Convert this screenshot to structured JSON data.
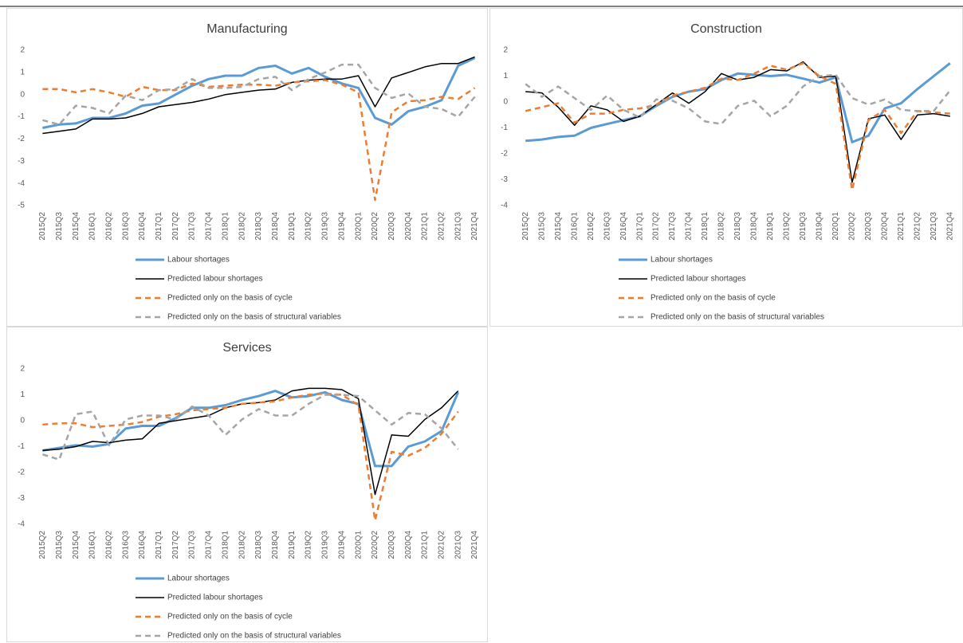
{
  "chart_data": [
    {
      "type": "line",
      "title": "Manufacturing",
      "categories": [
        "2015Q2",
        "2015Q3",
        "2015Q4",
        "2016Q1",
        "2016Q2",
        "2016Q3",
        "2016Q4",
        "2017Q1",
        "2017Q2",
        "2017Q3",
        "2017Q4",
        "2018Q1",
        "2018Q2",
        "2018Q3",
        "2018Q4",
        "2019Q1",
        "2019Q2",
        "2019Q3",
        "2019Q4",
        "2020Q1",
        "2020Q2",
        "2020Q3",
        "2020Q4",
        "2021Q1",
        "2021Q2",
        "2021Q3",
        "2021Q4"
      ],
      "ylim": [
        -5,
        2
      ],
      "yticks": [
        -5,
        -4,
        -3,
        -2,
        -1,
        0,
        1,
        2
      ],
      "series": [
        {
          "name": "Labour shortages",
          "color": "#5b9bd5",
          "dashed": false,
          "values": [
            -1.5,
            -1.35,
            -1.3,
            -1.05,
            -1.05,
            -0.85,
            -0.5,
            -0.4,
            0,
            0.4,
            0.7,
            0.85,
            0.85,
            1.2,
            1.3,
            0.95,
            1.2,
            0.8,
            0.5,
            0.3,
            -1.05,
            -1.35,
            -0.75,
            -0.55,
            -0.25,
            1.3,
            1.65
          ]
        },
        {
          "name": "Predicted labour shortages",
          "color": "#000000",
          "dashed": false,
          "values": [
            -1.75,
            -1.65,
            -1.55,
            -1.1,
            -1.1,
            -1.05,
            -0.85,
            -0.55,
            -0.45,
            -0.35,
            -0.2,
            0,
            0.1,
            0.2,
            0.25,
            0.55,
            0.65,
            0.7,
            0.7,
            0.85,
            -0.55,
            0.75,
            1.0,
            1.25,
            1.4,
            1.4,
            1.7
          ]
        },
        {
          "name": "Predicted only on the basis of cycle",
          "color": "#ed7d31",
          "dashed": true,
          "values": [
            0.25,
            0.25,
            0.1,
            0.25,
            0.1,
            -0.1,
            0.35,
            0.2,
            0.2,
            0.5,
            0.35,
            0.4,
            0.45,
            0.45,
            0.4,
            0.55,
            0.6,
            0.65,
            0.45,
            0.1,
            -4.75,
            -0.8,
            -0.3,
            -0.25,
            -0.1,
            -0.2,
            0.3
          ]
        },
        {
          "name": "Predicted only on the basis of structural variables",
          "color": "#a5a5a5",
          "dashed": true,
          "values": [
            -1.15,
            -1.35,
            -0.5,
            -0.6,
            -0.85,
            -0.05,
            -0.25,
            0.2,
            0.25,
            0.7,
            0.3,
            0.3,
            0.35,
            0.7,
            0.8,
            0.2,
            0.7,
            1.0,
            1.35,
            1.35,
            0.3,
            -0.15,
            0.05,
            -0.55,
            -0.65,
            -1.0,
            -0.1
          ]
        }
      ]
    },
    {
      "type": "line",
      "title": "Construction",
      "categories": [
        "2015Q2",
        "2015Q3",
        "2015Q4",
        "2016Q1",
        "2016Q2",
        "2016Q3",
        "2016Q4",
        "2017Q1",
        "2017Q2",
        "2017Q3",
        "2017Q4",
        "2018Q1",
        "2018Q2",
        "2018Q3",
        "2018Q4",
        "2019Q1",
        "2019Q2",
        "2019Q3",
        "2019Q4",
        "2020Q1",
        "2020Q2",
        "2020Q3",
        "2020Q4",
        "2021Q1",
        "2021Q2",
        "2021Q3",
        "2021Q4"
      ],
      "ylim": [
        -4,
        2
      ],
      "yticks": [
        -4,
        -3,
        -2,
        -1,
        0,
        1,
        2
      ],
      "series": [
        {
          "name": "Labour shortages",
          "color": "#5b9bd5",
          "dashed": false,
          "values": [
            -1.5,
            -1.45,
            -1.35,
            -1.3,
            -1.0,
            -0.85,
            -0.7,
            -0.55,
            -0.15,
            0.2,
            0.4,
            0.5,
            0.85,
            1.1,
            1.05,
            1.0,
            1.05,
            0.9,
            0.75,
            0.95,
            -1.55,
            -1.3,
            -0.25,
            -0.05,
            0.5,
            1.0,
            1.5
          ]
        },
        {
          "name": "Predicted labour shortages",
          "color": "#000000",
          "dashed": false,
          "values": [
            0.4,
            0.35,
            -0.2,
            -0.9,
            -0.15,
            -0.3,
            -0.75,
            -0.55,
            -0.1,
            0.35,
            -0.05,
            0.4,
            1.1,
            0.85,
            0.95,
            1.25,
            1.2,
            1.55,
            0.95,
            1.0,
            -3.1,
            -0.65,
            -0.5,
            -1.45,
            -0.5,
            -0.45,
            -0.55
          ]
        },
        {
          "name": "Predicted only on the basis of cycle",
          "color": "#ed7d31",
          "dashed": true,
          "values": [
            -0.35,
            -0.2,
            -0.05,
            -0.8,
            -0.45,
            -0.45,
            -0.3,
            -0.25,
            -0.1,
            0.25,
            0.4,
            0.55,
            0.9,
            0.85,
            1.1,
            1.4,
            1.25,
            1.5,
            1.0,
            0.7,
            -3.4,
            -0.7,
            -0.3,
            -1.2,
            -0.35,
            -0.4,
            -0.45
          ]
        },
        {
          "name": "Predicted only on the basis of structural variables",
          "color": "#a5a5a5",
          "dashed": true,
          "values": [
            0.7,
            0.2,
            0.6,
            0.15,
            -0.3,
            0.25,
            -0.3,
            -0.6,
            0.1,
            0.05,
            -0.25,
            -0.75,
            -0.85,
            -0.15,
            0.05,
            -0.55,
            -0.15,
            0.6,
            1.0,
            1.05,
            0.15,
            -0.1,
            0.1,
            -0.3,
            -0.35,
            -0.35,
            0.45
          ]
        }
      ]
    },
    {
      "type": "line",
      "title": "Services",
      "categories": [
        "2015Q2",
        "2015Q3",
        "2015Q4",
        "2016Q1",
        "2016Q2",
        "2016Q3",
        "2016Q4",
        "2017Q1",
        "2017Q2",
        "2017Q3",
        "2017Q4",
        "2018Q1",
        "2018Q2",
        "2018Q3",
        "2018Q4",
        "2019Q1",
        "2019Q2",
        "2019Q3",
        "2019Q4",
        "2020Q1",
        "2020Q2",
        "2020Q3",
        "2020Q4",
        "2021Q1",
        "2021Q2",
        "2021Q3",
        "2021Q4"
      ],
      "ylim": [
        -4,
        2
      ],
      "yticks": [
        -4,
        -3,
        -2,
        -1,
        0,
        1,
        2
      ],
      "series": [
        {
          "name": "Labour shortages",
          "color": "#5b9bd5",
          "dashed": false,
          "values": [
            -1.15,
            -1.05,
            -0.95,
            -1.0,
            -0.9,
            -0.3,
            -0.2,
            -0.2,
            0.1,
            0.5,
            0.5,
            0.6,
            0.8,
            0.95,
            1.15,
            0.9,
            0.95,
            1.1,
            0.8,
            0.65,
            -1.75,
            -1.75,
            -1.0,
            -0.8,
            -0.4,
            1.1,
            null
          ]
        },
        {
          "name": "Predicted labour shortages",
          "color": "#000000",
          "dashed": false,
          "values": [
            -1.15,
            -1.1,
            -1.0,
            -0.8,
            -0.85,
            -0.75,
            -0.7,
            -0.1,
            0,
            0.1,
            0.2,
            0.5,
            0.65,
            0.7,
            0.8,
            1.15,
            1.25,
            1.25,
            1.2,
            0.85,
            -2.85,
            -0.55,
            -0.6,
            0.05,
            0.5,
            1.15,
            null
          ]
        },
        {
          "name": "Predicted only on the basis of cycle",
          "color": "#ed7d31",
          "dashed": true,
          "values": [
            -0.15,
            -0.1,
            -0.1,
            -0.25,
            -0.2,
            -0.15,
            -0.05,
            0.15,
            0.25,
            0.4,
            0.45,
            0.5,
            0.65,
            0.7,
            0.75,
            0.9,
            1.0,
            1.05,
            1.0,
            0.6,
            -3.85,
            -1.2,
            -1.35,
            -1.05,
            -0.5,
            0.35,
            null
          ]
        },
        {
          "name": "Predicted only on the basis of structural variables",
          "color": "#a5a5a5",
          "dashed": true,
          "values": [
            -1.3,
            -1.5,
            0.25,
            0.35,
            -0.95,
            0.05,
            0.2,
            0.2,
            0.05,
            0.55,
            0.2,
            -0.55,
            0.05,
            0.45,
            0.2,
            0.2,
            0.65,
            1.0,
            1.0,
            0.95,
            0.4,
            -0.15,
            0.3,
            0.25,
            -0.3,
            -1.1,
            null
          ]
        }
      ]
    }
  ]
}
